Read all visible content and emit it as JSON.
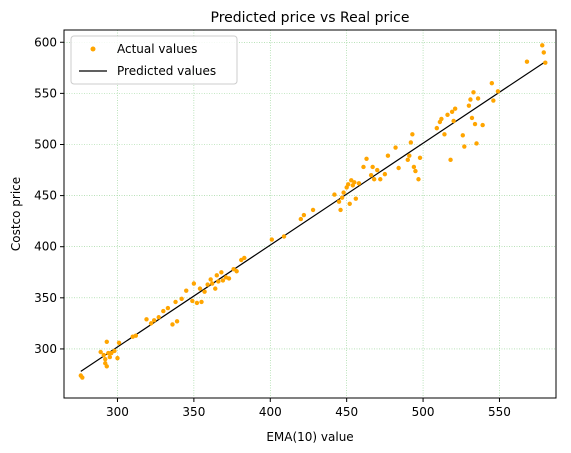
{
  "chart_data": {
    "type": "scatter",
    "title": "Predicted price vs Real price",
    "xlabel": "EMA(10) value",
    "ylabel": "Costco price",
    "xlim": [
      265,
      587
    ],
    "ylim": [
      252,
      612
    ],
    "xticks": [
      300,
      350,
      400,
      450,
      500,
      550
    ],
    "yticks": [
      300,
      350,
      400,
      450,
      500,
      550,
      600
    ],
    "grid": true,
    "grid_color": "#8fd18f",
    "legend_position": "top-left",
    "series": [
      {
        "name": "Actual values",
        "kind": "scatter",
        "color": "#ffa500",
        "points": [
          [
            276,
            274
          ],
          [
            277,
            272
          ],
          [
            289,
            297
          ],
          [
            291,
            294
          ],
          [
            292,
            290
          ],
          [
            292,
            286
          ],
          [
            293,
            283
          ],
          [
            293,
            307
          ],
          [
            294,
            296
          ],
          [
            295,
            292
          ],
          [
            296,
            296
          ],
          [
            298,
            298
          ],
          [
            300,
            291
          ],
          [
            301,
            306
          ],
          [
            310,
            312
          ],
          [
            312,
            313
          ],
          [
            319,
            329
          ],
          [
            322,
            325
          ],
          [
            324,
            328
          ],
          [
            327,
            331
          ],
          [
            330,
            337
          ],
          [
            333,
            340
          ],
          [
            336,
            324
          ],
          [
            338,
            346
          ],
          [
            339,
            327
          ],
          [
            342,
            349
          ],
          [
            345,
            357
          ],
          [
            349,
            347
          ],
          [
            350,
            364
          ],
          [
            352,
            345
          ],
          [
            354,
            359
          ],
          [
            355,
            346
          ],
          [
            357,
            356
          ],
          [
            359,
            363
          ],
          [
            361,
            368
          ],
          [
            362,
            364
          ],
          [
            364,
            359
          ],
          [
            365,
            372
          ],
          [
            366,
            366
          ],
          [
            368,
            375
          ],
          [
            369,
            367
          ],
          [
            371,
            370
          ],
          [
            373,
            369
          ],
          [
            376,
            378
          ],
          [
            378,
            376
          ],
          [
            381,
            387
          ],
          [
            383,
            389
          ],
          [
            401,
            407
          ],
          [
            409,
            410
          ],
          [
            420,
            427
          ],
          [
            422,
            431
          ],
          [
            428,
            436
          ],
          [
            442,
            451
          ],
          [
            445,
            444
          ],
          [
            446,
            436
          ],
          [
            447,
            448
          ],
          [
            448,
            453
          ],
          [
            450,
            458
          ],
          [
            451,
            461
          ],
          [
            452,
            442
          ],
          [
            453,
            465
          ],
          [
            454,
            460
          ],
          [
            455,
            463
          ],
          [
            456,
            447
          ],
          [
            458,
            462
          ],
          [
            461,
            478
          ],
          [
            463,
            486
          ],
          [
            466,
            470
          ],
          [
            467,
            478
          ],
          [
            468,
            466
          ],
          [
            470,
            475
          ],
          [
            472,
            466
          ],
          [
            475,
            471
          ],
          [
            477,
            489
          ],
          [
            482,
            497
          ],
          [
            484,
            477
          ],
          [
            490,
            485
          ],
          [
            491,
            489
          ],
          [
            492,
            502
          ],
          [
            493,
            510
          ],
          [
            494,
            478
          ],
          [
            495,
            474
          ],
          [
            497,
            466
          ],
          [
            498,
            487
          ],
          [
            509,
            516
          ],
          [
            511,
            522
          ],
          [
            512,
            525
          ],
          [
            514,
            510
          ],
          [
            516,
            529
          ],
          [
            518,
            485
          ],
          [
            519,
            532
          ],
          [
            520,
            523
          ],
          [
            521,
            535
          ],
          [
            526,
            509
          ],
          [
            527,
            498
          ],
          [
            530,
            538
          ],
          [
            531,
            544
          ],
          [
            532,
            526
          ],
          [
            533,
            551
          ],
          [
            534,
            520
          ],
          [
            535,
            501
          ],
          [
            536,
            545
          ],
          [
            539,
            519
          ],
          [
            545,
            560
          ],
          [
            546,
            543
          ],
          [
            549,
            552
          ],
          [
            568,
            581
          ],
          [
            578,
            597
          ],
          [
            579,
            590
          ],
          [
            580,
            580
          ]
        ]
      },
      {
        "name": "Predicted values",
        "kind": "line",
        "color": "#000000",
        "points": [
          [
            276,
            278
          ],
          [
            580,
            581
          ]
        ]
      }
    ]
  }
}
